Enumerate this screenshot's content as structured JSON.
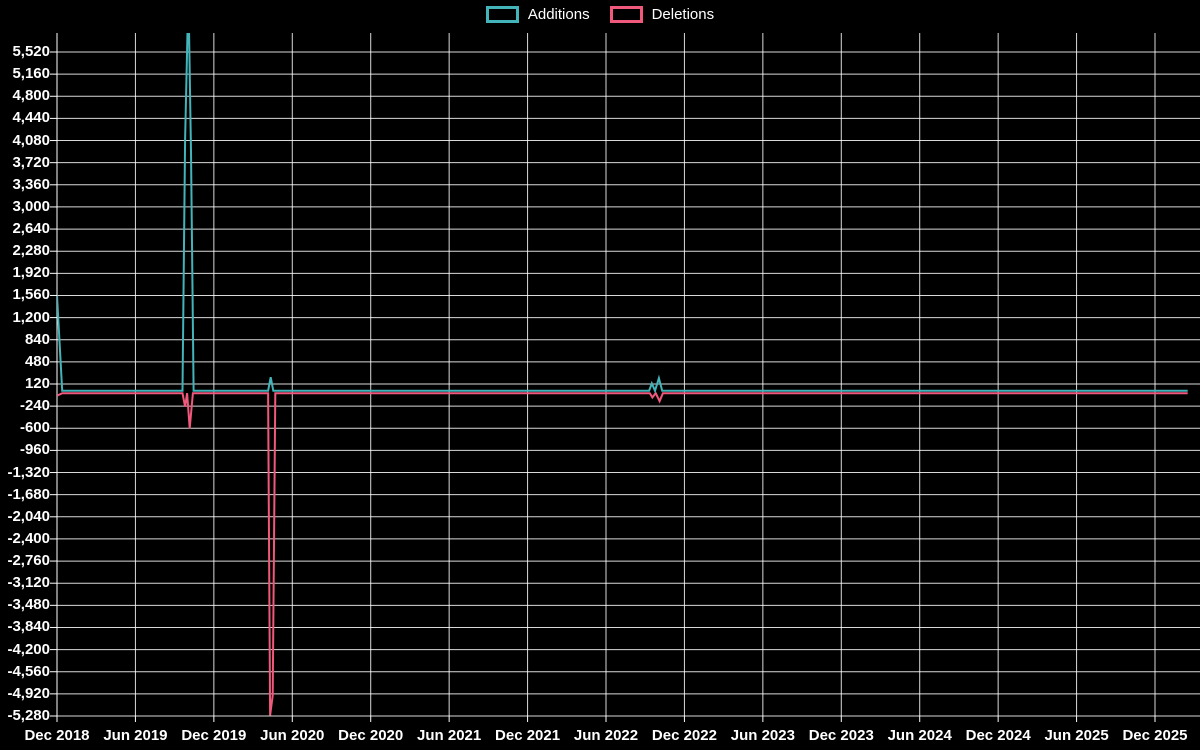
{
  "legend": {
    "items": [
      {
        "label": "Additions",
        "color": "#42b4ba"
      },
      {
        "label": "Deletions",
        "color": "#f0587c"
      }
    ]
  },
  "chart_data": {
    "type": "line",
    "title": "",
    "background": "#000000",
    "grid": {
      "on": true,
      "color": "#ffffff",
      "horizontal": true,
      "vertical": true
    },
    "legend_position": "top-center",
    "x_axis": {
      "unit": "months since Dec 2018",
      "tick_interval_months": 6,
      "tick_labels": [
        "Dec 2018",
        "Jun 2019",
        "Dec 2019",
        "Jun 2020",
        "Dec 2020",
        "Jun 2021",
        "Dec 2021",
        "Jun 2022",
        "Dec 2022",
        "Jun 2023",
        "Dec 2023",
        "Jun 2024",
        "Dec 2024",
        "Jun 2025",
        "Dec 2025"
      ]
    },
    "y_axis": {
      "min": -5280,
      "max": 5520,
      "tick_step": 360,
      "tick_values": [
        5520,
        5160,
        4800,
        4440,
        4080,
        3720,
        3360,
        3000,
        2640,
        2280,
        1920,
        1560,
        1200,
        840,
        480,
        120,
        -240,
        -600,
        -960,
        -1320,
        -1680,
        -2040,
        -2400,
        -2760,
        -3120,
        -3480,
        -3840,
        -4200,
        -4560,
        -4920,
        -5280
      ],
      "tick_labels": [
        "5,520",
        "5,160",
        "4,800",
        "4,440",
        "4,080",
        "3,720",
        "3,360",
        "3,000",
        "2,640",
        "2,280",
        "1,920",
        "1,560",
        "1,200",
        "840",
        "480",
        "120",
        "-240",
        "-600",
        "-960",
        "-1,320",
        "-1,680",
        "-2,040",
        "-2,400",
        "-2,760",
        "-3,120",
        "-3,480",
        "-3,840",
        "-4,200",
        "-4,560",
        "-4,920",
        "-5,280"
      ]
    },
    "series": [
      {
        "name": "Additions",
        "color": "#42b4ba",
        "points": [
          [
            0,
            1560
          ],
          [
            0.4,
            10
          ],
          [
            9.6,
            10
          ],
          [
            9.8,
            4100
          ],
          [
            10.05,
            6500
          ],
          [
            10.25,
            3900
          ],
          [
            10.45,
            10
          ],
          [
            16.15,
            10
          ],
          [
            16.35,
            230
          ],
          [
            16.55,
            10
          ],
          [
            45.3,
            10
          ],
          [
            45.5,
            130
          ],
          [
            45.75,
            10
          ],
          [
            46.05,
            215
          ],
          [
            46.3,
            10
          ],
          [
            86.5,
            10
          ]
        ],
        "note": "peak near Oct 2019 is clipped above axis max"
      },
      {
        "name": "Deletions",
        "color": "#f0587c",
        "points": [
          [
            0,
            -70
          ],
          [
            0.4,
            -30
          ],
          [
            9.6,
            -30
          ],
          [
            9.8,
            -250
          ],
          [
            9.95,
            -30
          ],
          [
            10.15,
            -600
          ],
          [
            10.4,
            -30
          ],
          [
            16.15,
            -30
          ],
          [
            16.3,
            -5270
          ],
          [
            16.5,
            -4950
          ],
          [
            16.7,
            -30
          ],
          [
            45.35,
            -30
          ],
          [
            45.55,
            -100
          ],
          [
            45.8,
            -30
          ],
          [
            46.1,
            -160
          ],
          [
            46.35,
            -30
          ],
          [
            86.5,
            -30
          ]
        ]
      }
    ]
  }
}
